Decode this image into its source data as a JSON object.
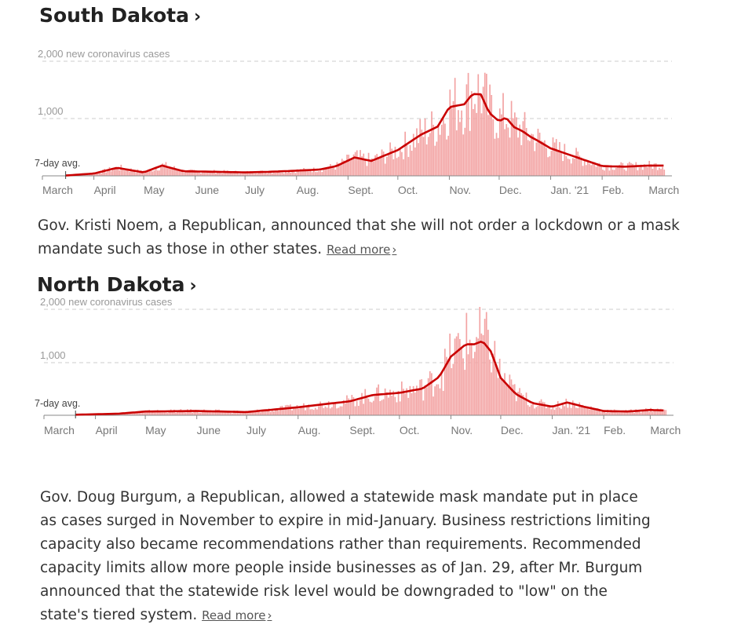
{
  "states": [
    {
      "title": "South Dakota",
      "chevron": "›",
      "description": "Gov. Kristi Noem, a Republican, announced that she will not order a lockdown or a mask mandate such as those in other states.",
      "read_more": "Read more",
      "read_more_chevron": "›"
    },
    {
      "title": "North Dakota",
      "chevron": "›",
      "description": "Gov. Doug Burgum, a Republican, allowed a statewide mask mandate put in place as cases surged in November to expire in mid-January. Business restrictions limiting capacity also became recommendations rather than requirements. Recommended capacity limits allow more people inside businesses as of Jan. 29, after Mr. Burgum announced that the statewide risk level would be downgraded to \"low\" on the state's tiered system.",
      "read_more": "Read more",
      "read_more_chevron": "›"
    }
  ],
  "chart_data": [
    {
      "type": "bar",
      "title": "South Dakota",
      "y_unit_label": "2,000 new coronavirus cases",
      "y_ticks": [
        0,
        1000,
        2000
      ],
      "y_tick_labels": [
        "",
        "1,000",
        "2,000 new coronavirus cases"
      ],
      "ylim": [
        0,
        2100
      ],
      "x_ticks": [
        "March",
        "April",
        "May",
        "June",
        "July",
        "Aug.",
        "Sept.",
        "Oct.",
        "Nov.",
        "Dec.",
        "Jan. '21",
        "Feb.",
        "March"
      ],
      "avg_label": "7-day avg.",
      "grid": true,
      "colors": {
        "bars": "#f3a3a3",
        "avg_line": "#c90000",
        "grid": "#cccccc"
      },
      "series": [
        {
          "name": "7-day avg.",
          "x": [
            "2020-03-15",
            "2020-04-01",
            "2020-04-15",
            "2020-05-01",
            "2020-05-12",
            "2020-05-25",
            "2020-06-15",
            "2020-07-01",
            "2020-07-15",
            "2020-08-01",
            "2020-08-15",
            "2020-08-25",
            "2020-09-05",
            "2020-09-15",
            "2020-10-01",
            "2020-10-15",
            "2020-10-25",
            "2020-11-01",
            "2020-11-10",
            "2020-11-15",
            "2020-11-20",
            "2020-11-25",
            "2020-12-01",
            "2020-12-05",
            "2020-12-10",
            "2020-12-15",
            "2020-12-20",
            "2020-12-25",
            "2021-01-01",
            "2021-01-10",
            "2021-01-20",
            "2021-02-01",
            "2021-02-15",
            "2021-03-01",
            "2021-03-10"
          ],
          "values": [
            5,
            40,
            140,
            60,
            180,
            80,
            70,
            60,
            70,
            90,
            110,
            170,
            320,
            260,
            450,
            720,
            860,
            1200,
            1250,
            1430,
            1420,
            1100,
            950,
            1020,
            850,
            780,
            680,
            600,
            480,
            390,
            290,
            170,
            160,
            180,
            180
          ]
        }
      ]
    },
    {
      "type": "bar",
      "title": "North Dakota",
      "y_unit_label": "2,000 new coronavirus cases",
      "y_ticks": [
        0,
        1000,
        2000
      ],
      "y_tick_labels": [
        "",
        "1,000",
        "2,000 new coronavirus cases"
      ],
      "ylim": [
        0,
        2600
      ],
      "x_ticks": [
        "March",
        "April",
        "May",
        "June",
        "July",
        "Aug.",
        "Sept.",
        "Oct.",
        "Nov.",
        "Dec.",
        "Jan. '21",
        "Feb.",
        "March"
      ],
      "avg_label": "7-day avg.",
      "grid": true,
      "colors": {
        "bars": "#f3a3a3",
        "avg_line": "#c90000",
        "grid": "#cccccc"
      },
      "series": [
        {
          "name": "7-day avg.",
          "x": [
            "2020-03-20",
            "2020-04-15",
            "2020-05-01",
            "2020-06-01",
            "2020-07-01",
            "2020-08-01",
            "2020-08-20",
            "2020-09-01",
            "2020-09-15",
            "2020-10-01",
            "2020-10-15",
            "2020-10-25",
            "2020-11-01",
            "2020-11-10",
            "2020-11-15",
            "2020-11-20",
            "2020-11-25",
            "2020-12-01",
            "2020-12-10",
            "2020-12-20",
            "2021-01-01",
            "2021-01-10",
            "2021-01-20",
            "2021-02-01",
            "2021-02-15",
            "2021-03-01",
            "2021-03-10"
          ],
          "values": [
            10,
            30,
            70,
            80,
            60,
            150,
            220,
            260,
            380,
            420,
            500,
            720,
            1100,
            1330,
            1330,
            1390,
            1200,
            700,
            400,
            230,
            160,
            240,
            160,
            80,
            70,
            100,
            90
          ]
        }
      ]
    }
  ]
}
